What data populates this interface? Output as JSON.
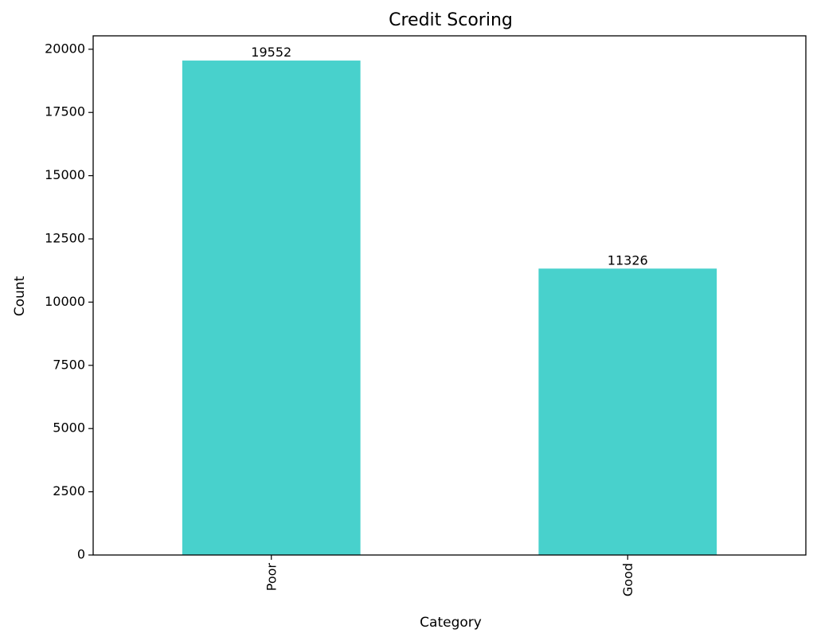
{
  "chart_data": {
    "type": "bar",
    "title": "Credit Scoring",
    "xlabel": "Category",
    "ylabel": "Count",
    "categories": [
      "Poor",
      "Good"
    ],
    "values": [
      19552,
      11326
    ],
    "data_labels": [
      "19552",
      "11326"
    ],
    "ylim": [
      0,
      20530
    ],
    "yticks": [
      0,
      2500,
      5000,
      7500,
      10000,
      12500,
      15000,
      17500,
      20000
    ],
    "ytick_labels": [
      "0",
      "2500",
      "5000",
      "7500",
      "10000",
      "12500",
      "15000",
      "17500",
      "20000"
    ],
    "grid": false,
    "legend": "none",
    "bar_color": "#48d1cc",
    "x_tick_rotation": "vertical"
  }
}
